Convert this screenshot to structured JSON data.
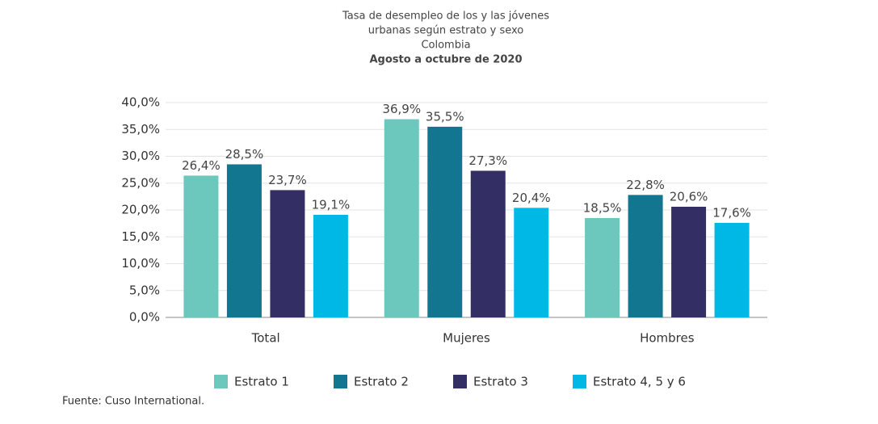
{
  "chart_data": {
    "type": "bar",
    "title_lines": [
      "Tasa de desempleo de los y las jóvenes",
      "urbanas según estrato y sexo",
      "Colombia"
    ],
    "subtitle": "Agosto a octubre de 2020",
    "categories": [
      "Total",
      "Mujeres",
      "Hombres"
    ],
    "series": [
      {
        "name": "Estrato 1",
        "color": "#6cc7bd",
        "values": [
          26.4,
          36.9,
          18.5
        ],
        "value_labels": [
          "26,4%",
          "36,9%",
          "18,5%"
        ]
      },
      {
        "name": "Estrato 2",
        "color": "#137691",
        "values": [
          28.5,
          35.5,
          22.8
        ],
        "value_labels": [
          "28,5%",
          "35,5%",
          "22,8%"
        ]
      },
      {
        "name": "Estrato 3",
        "color": "#332e63",
        "values": [
          23.7,
          27.3,
          20.6
        ],
        "value_labels": [
          "23,7%",
          "27,3%",
          "20,6%"
        ]
      },
      {
        "name": "Estrato 4, 5 y 6",
        "color": "#00b8e6",
        "values": [
          19.1,
          20.4,
          17.6
        ],
        "value_labels": [
          "19,1%",
          "20,4%",
          "17,6%"
        ]
      }
    ],
    "ylim": [
      0,
      40
    ],
    "yticks": [
      {
        "value": 0,
        "label": "0,0%"
      },
      {
        "value": 5,
        "label": "5,0%"
      },
      {
        "value": 10,
        "label": "10,0%"
      },
      {
        "value": 15,
        "label": "15,0%"
      },
      {
        "value": 20,
        "label": "20,0%"
      },
      {
        "value": 25,
        "label": "25,0%"
      },
      {
        "value": 30,
        "label": "30,0%"
      },
      {
        "value": 35,
        "label": "35,0%"
      },
      {
        "value": 40,
        "label": "40,0%"
      }
    ],
    "grid": true,
    "source": "Fuente: Cuso International."
  }
}
